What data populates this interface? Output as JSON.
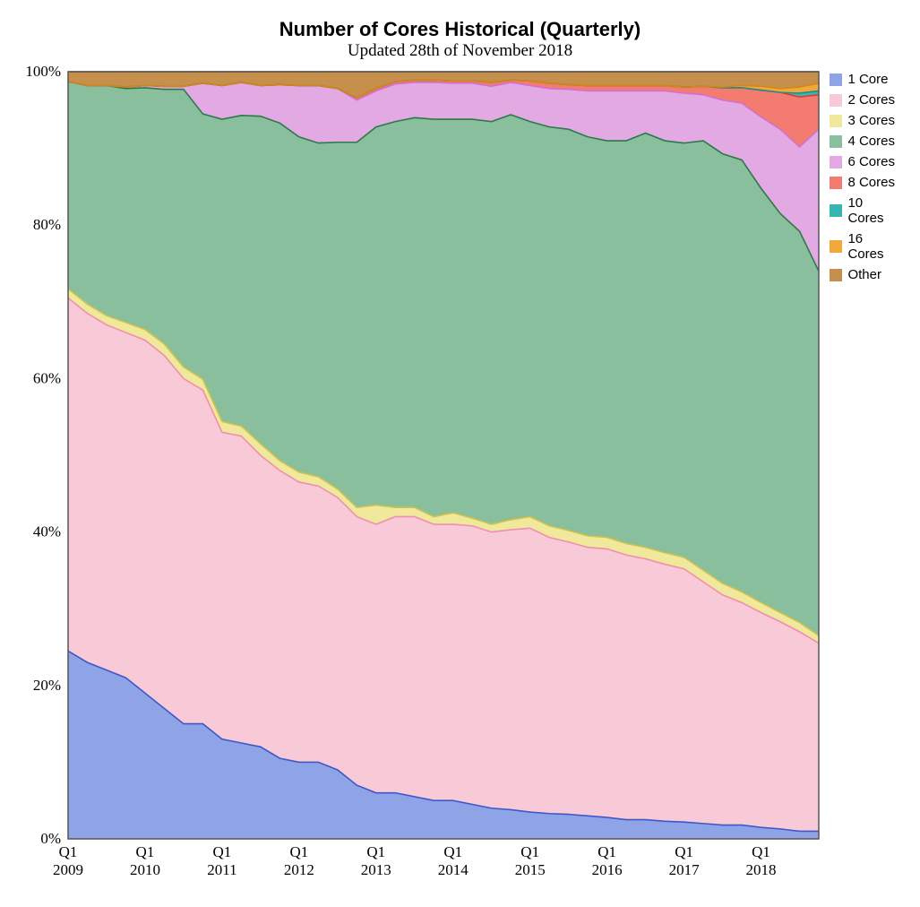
{
  "title": "Number of Cores Historical (Quarterly)",
  "subtitle": "Updated 28th of November 2018",
  "chart": {
    "type": "stacked-area",
    "ylim": [
      0,
      100
    ],
    "yticks": [
      0,
      20,
      40,
      60,
      80,
      100
    ],
    "ytick_labels": [
      "0%",
      "20%",
      "40%",
      "60%",
      "80%",
      "100%"
    ],
    "x_year_labels": [
      "Q1",
      "Q1",
      "Q1",
      "Q1",
      "Q1",
      "Q1",
      "Q1",
      "Q1",
      "Q1",
      "Q1"
    ],
    "x_year_sub": [
      "2009",
      "2010",
      "2011",
      "2012",
      "2013",
      "2014",
      "2015",
      "2016",
      "2017",
      "2018"
    ],
    "quarters": [
      "2009Q1",
      "2009Q2",
      "2009Q3",
      "2009Q4",
      "2010Q1",
      "2010Q2",
      "2010Q3",
      "2010Q4",
      "2011Q1",
      "2011Q2",
      "2011Q3",
      "2011Q4",
      "2012Q1",
      "2012Q2",
      "2012Q3",
      "2012Q4",
      "2013Q1",
      "2013Q2",
      "2013Q3",
      "2013Q4",
      "2014Q1",
      "2014Q2",
      "2014Q3",
      "2014Q4",
      "2015Q1",
      "2015Q2",
      "2015Q3",
      "2015Q4",
      "2016Q1",
      "2016Q2",
      "2016Q3",
      "2016Q4",
      "2017Q1",
      "2017Q2",
      "2017Q3",
      "2017Q4",
      "2018Q1",
      "2018Q2",
      "2018Q3",
      "2018Q4"
    ],
    "series": [
      {
        "name": "1 Core",
        "fill": "#8fa4e6",
        "stroke": "#3d58c8",
        "values": [
          24.5,
          23,
          22,
          21,
          19,
          17,
          15,
          15,
          13,
          12.5,
          12,
          10.5,
          10,
          10,
          9,
          7,
          6,
          6,
          5.5,
          5,
          5,
          4.5,
          4,
          3.8,
          3.5,
          3.3,
          3.2,
          3,
          2.8,
          2.5,
          2.5,
          2.3,
          2.2,
          2,
          1.8,
          1.8,
          1.5,
          1.3,
          1,
          1
        ]
      },
      {
        "name": "2 Cores",
        "fill": "#f8c9d7",
        "stroke": "#f08fb0",
        "values": [
          46,
          45.5,
          45,
          45,
          46,
          46,
          45,
          43.5,
          40,
          40,
          38,
          37.5,
          36.5,
          36,
          35.5,
          35,
          35,
          36,
          36.5,
          36,
          36,
          36.3,
          36,
          36.5,
          37,
          36,
          35.5,
          35,
          35,
          34.5,
          34,
          33.5,
          33,
          31.5,
          30,
          29,
          28,
          27,
          26,
          24.5
        ]
      },
      {
        "name": "3 Cores",
        "fill": "#f0e89a",
        "stroke": "#ccc24d",
        "values": [
          1.2,
          1.2,
          1.2,
          1.3,
          1.4,
          1.5,
          1.5,
          1.4,
          1.4,
          1.3,
          1.5,
          1.3,
          1.3,
          1.2,
          1.1,
          1.2,
          2.5,
          1.2,
          1.2,
          1.0,
          1.5,
          1.0,
          1.0,
          1.3,
          1.5,
          1.5,
          1.5,
          1.5,
          1.5,
          1.5,
          1.5,
          1.5,
          1.5,
          1.5,
          1.5,
          1.4,
          1.3,
          1.2,
          1.2,
          1
        ]
      },
      {
        "name": "4 Cores",
        "fill": "#89bf9d",
        "stroke": "#2b7a4a",
        "values": [
          27,
          28.5,
          30,
          30.5,
          31.5,
          33.2,
          36.2,
          34.6,
          39.4,
          40.5,
          42.7,
          44,
          43.7,
          43.5,
          45.2,
          47.6,
          49.3,
          50.3,
          50.8,
          51.8,
          51.3,
          52,
          52.5,
          52.8,
          51.5,
          52,
          52.3,
          52,
          51.7,
          52.5,
          54,
          53.7,
          54,
          56,
          56,
          56.3,
          54,
          52,
          51,
          47.5
        ]
      },
      {
        "name": "6 Cores",
        "fill": "#e3a9e3",
        "stroke": "#d270d0",
        "values": [
          0,
          0,
          0,
          0.2,
          0.3,
          0.4,
          0.4,
          4,
          4.4,
          4.3,
          4,
          5,
          6.7,
          7.5,
          7,
          5.5,
          4.7,
          4.9,
          4.6,
          4.8,
          4.7,
          4.7,
          4.6,
          4.2,
          4.7,
          5,
          5.2,
          6,
          6.5,
          6.5,
          5.5,
          6.5,
          6.5,
          6,
          7,
          7.4,
          9.3,
          11,
          11,
          18.5
        ]
      },
      {
        "name": "8 Cores",
        "fill": "#f37b6f",
        "stroke": "#e7392b",
        "values": [
          0,
          0,
          0,
          0,
          0,
          0,
          0,
          0,
          0,
          0,
          0,
          0,
          0,
          0,
          0,
          0.3,
          0.3,
          0.3,
          0.3,
          0.3,
          0.3,
          0.3,
          0.5,
          0.3,
          0.6,
          0.7,
          0.6,
          0.7,
          0.7,
          0.7,
          0.7,
          0.7,
          0.8,
          1.1,
          1.6,
          2.0,
          3.5,
          4.8,
          6.5,
          4.5
        ]
      },
      {
        "name": "10 Cores",
        "fill": "#36b6b1",
        "stroke": "#1e8f8a",
        "values": [
          0,
          0,
          0,
          0,
          0,
          0,
          0,
          0,
          0,
          0,
          0,
          0,
          0,
          0,
          0,
          0,
          0,
          0,
          0,
          0,
          0,
          0,
          0,
          0,
          0,
          0,
          0,
          0,
          0,
          0,
          0,
          0,
          0,
          0,
          0,
          0,
          0,
          0,
          0.5,
          0.5
        ]
      },
      {
        "name": "16 Cores",
        "fill": "#f0a83a",
        "stroke": "#d48716",
        "values": [
          0,
          0,
          0,
          0,
          0,
          0,
          0,
          0,
          0,
          0,
          0,
          0,
          0,
          0,
          0,
          0,
          0,
          0,
          0,
          0,
          0,
          0,
          0,
          0,
          0,
          0,
          0,
          0,
          0,
          0,
          0,
          0,
          0,
          0,
          0.1,
          0.3,
          0.5,
          0.5,
          0.8,
          1
        ]
      },
      {
        "name": "Other",
        "fill": "#c68f4c",
        "stroke": "#a06c2e",
        "values": [
          1.3,
          1.8,
          1.8,
          2,
          1.8,
          1.9,
          1.9,
          1.5,
          1.8,
          1.4,
          1.8,
          1.7,
          1.8,
          1.8,
          2.2,
          3.4,
          2.2,
          1.3,
          1.1,
          1.1,
          1.2,
          1.2,
          1.4,
          1.1,
          1.2,
          1.5,
          1.7,
          1.8,
          1.8,
          1.8,
          1.8,
          1.8,
          2,
          1.9,
          2,
          1.8,
          1.9,
          2.2,
          2,
          1.5
        ]
      }
    ],
    "plot_bg": "#ffffff",
    "grid_color": "#9a9a9a",
    "border_color": "#555555",
    "title_fontsize": 22,
    "subtitle_fontsize": 19,
    "axis_fontsize": 17,
    "legend_fontsize": 15
  }
}
